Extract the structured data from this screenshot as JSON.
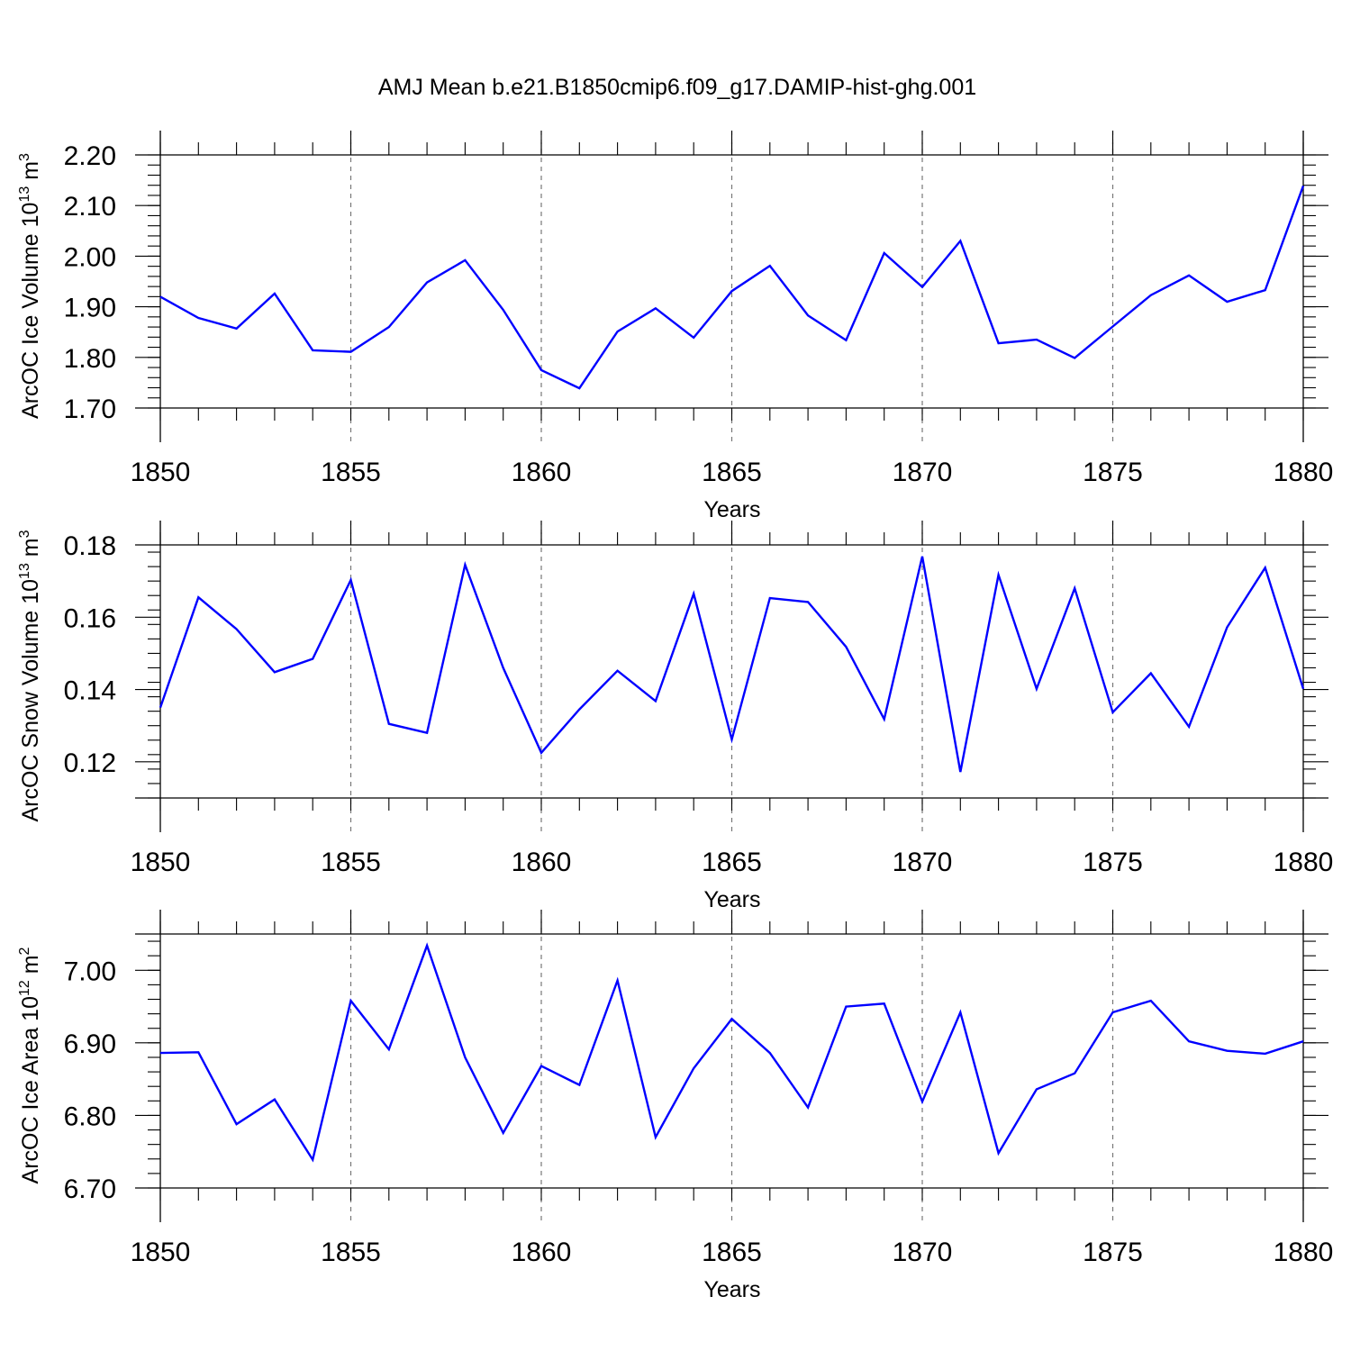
{
  "figure": {
    "title": "AMJ Mean b.e21.B1850cmip6.f09_g17.DAMIP-hist-ghg.001",
    "line_color": "#0000ff"
  },
  "chart_data": [
    {
      "type": "line",
      "id": "ice-volume",
      "ylabel": "ArcOC Ice Volume 10",
      "ylabel_exp": "13",
      "ylabel_unit": " m",
      "ylabel_unit_exp": "3",
      "xlabel": "Years",
      "xlim": [
        1850,
        1880
      ],
      "ylim": [
        1.7,
        2.2
      ],
      "yticks": [
        1.7,
        1.8,
        1.9,
        2.0,
        2.1,
        2.2
      ],
      "ytick_labels": [
        "1.70",
        "1.80",
        "1.90",
        "2.00",
        "2.10",
        "2.20"
      ],
      "yminor_step": 0.02,
      "xticks": [
        1850,
        1855,
        1860,
        1865,
        1870,
        1875,
        1880
      ],
      "xtick_labels": [
        "1850",
        "1855",
        "1860",
        "1865",
        "1870",
        "1875",
        "1880"
      ],
      "grid_x": [
        1855,
        1860,
        1865,
        1870,
        1875
      ],
      "series": [
        {
          "name": "ArcOC Ice Volume",
          "x": [
            1850,
            1851,
            1852,
            1853,
            1854,
            1855,
            1856,
            1857,
            1858,
            1859,
            1860,
            1861,
            1862,
            1863,
            1864,
            1865,
            1866,
            1867,
            1868,
            1869,
            1870,
            1871,
            1872,
            1873,
            1874,
            1875,
            1876,
            1877,
            1878,
            1879,
            1880
          ],
          "values": [
            1.92,
            1.878,
            1.857,
            1.926,
            1.814,
            1.811,
            1.86,
            1.948,
            1.992,
            1.894,
            1.775,
            1.739,
            1.851,
            1.897,
            1.839,
            1.931,
            1.981,
            1.883,
            1.834,
            2.006,
            1.939,
            2.03,
            1.828,
            1.835,
            1.799,
            1.861,
            1.923,
            1.962,
            1.91,
            1.933,
            2.139
          ]
        }
      ]
    },
    {
      "type": "line",
      "id": "snow-volume",
      "ylabel": "ArcOC Snow Volume 10",
      "ylabel_exp": "13",
      "ylabel_unit": " m",
      "ylabel_unit_exp": "3",
      "xlabel": "Years",
      "xlim": [
        1850,
        1880
      ],
      "ylim": [
        0.11,
        0.18
      ],
      "yticks": [
        0.12,
        0.14,
        0.16,
        0.18
      ],
      "ytick_labels": [
        "0.12",
        "0.14",
        "0.16",
        "0.18"
      ],
      "yminor_step": 0.004,
      "xticks": [
        1850,
        1855,
        1860,
        1865,
        1870,
        1875,
        1880
      ],
      "xtick_labels": [
        "1850",
        "1855",
        "1860",
        "1865",
        "1870",
        "1875",
        "1880"
      ],
      "grid_x": [
        1855,
        1860,
        1865,
        1870,
        1875
      ],
      "series": [
        {
          "name": "ArcOC Snow Volume",
          "x": [
            1850,
            1851,
            1852,
            1853,
            1854,
            1855,
            1856,
            1857,
            1858,
            1859,
            1860,
            1861,
            1862,
            1863,
            1864,
            1865,
            1866,
            1867,
            1868,
            1869,
            1870,
            1871,
            1872,
            1873,
            1874,
            1875,
            1876,
            1877,
            1878,
            1879,
            1880
          ],
          "values": [
            0.135,
            0.1655,
            0.1567,
            0.1448,
            0.1485,
            0.1703,
            0.1305,
            0.128,
            0.1745,
            0.146,
            0.1225,
            0.1345,
            0.1452,
            0.1368,
            0.1665,
            0.1262,
            0.1653,
            0.1642,
            0.1518,
            0.1318,
            0.1768,
            0.1172,
            0.1717,
            0.1402,
            0.168,
            0.1337,
            0.1445,
            0.1297,
            0.1572,
            0.1737,
            0.1402
          ]
        }
      ]
    },
    {
      "type": "line",
      "id": "ice-area",
      "ylabel": "ArcOC Ice Area 10",
      "ylabel_exp": "12",
      "ylabel_unit": " m",
      "ylabel_unit_exp": "2",
      "xlabel": "Years",
      "xlim": [
        1850,
        1880
      ],
      "ylim": [
        6.7,
        7.05
      ],
      "yticks": [
        6.7,
        6.8,
        6.9,
        7.0
      ],
      "ytick_labels": [
        "6.70",
        "6.80",
        "6.90",
        "7.00"
      ],
      "yminor_step": 0.02,
      "xticks": [
        1850,
        1855,
        1860,
        1865,
        1870,
        1875,
        1880
      ],
      "xtick_labels": [
        "1850",
        "1855",
        "1860",
        "1865",
        "1870",
        "1875",
        "1880"
      ],
      "grid_x": [
        1855,
        1860,
        1865,
        1870,
        1875
      ],
      "series": [
        {
          "name": "ArcOC Ice Area",
          "x": [
            1850,
            1851,
            1852,
            1853,
            1854,
            1855,
            1856,
            1857,
            1858,
            1859,
            1860,
            1861,
            1862,
            1863,
            1864,
            1865,
            1866,
            1867,
            1868,
            1869,
            1870,
            1871,
            1872,
            1873,
            1874,
            1875,
            1876,
            1877,
            1878,
            1879,
            1880
          ],
          "values": [
            6.886,
            6.887,
            6.788,
            6.822,
            6.739,
            6.958,
            6.891,
            7.034,
            6.88,
            6.776,
            6.868,
            6.842,
            6.986,
            6.77,
            6.865,
            6.933,
            6.886,
            6.811,
            6.95,
            6.954,
            6.819,
            6.942,
            6.748,
            6.836,
            6.858,
            6.942,
            6.958,
            6.902,
            6.889,
            6.885,
            6.902
          ]
        }
      ]
    }
  ]
}
